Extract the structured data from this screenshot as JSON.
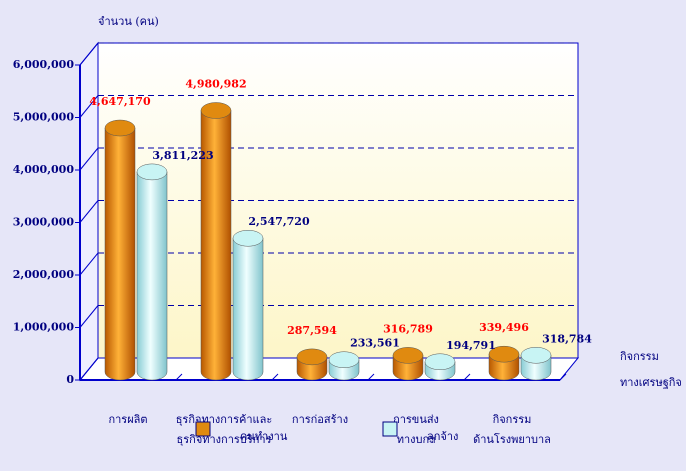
{
  "chart_data": {
    "type": "bar3d",
    "y_label": "จำนวน (คน)",
    "x_label": [
      "กิจกรรม",
      "ทางเศรษฐกิจ"
    ],
    "categories": [
      [
        "การผลิต"
      ],
      [
        "ธุรกิจทางการค้าและ",
        "ธุรกิจทางการบริการ"
      ],
      [
        "การก่อสร้าง"
      ],
      [
        "การขนส่ง",
        "ทางบกฯ"
      ],
      [
        "กิจกรรม",
        "ด้านโรงพยาบาล"
      ]
    ],
    "series": [
      {
        "name": "คนทำงาน",
        "color": "#e08a10",
        "label_color": "#ff0000",
        "values": [
          4647170,
          4980982,
          287594,
          316789,
          339496
        ],
        "value_labels": [
          "4,647,170",
          "4,980,982",
          "287,594",
          "316,789",
          "339,496"
        ]
      },
      {
        "name": "ลูกจ้าง",
        "color": "#c8f4f4",
        "label_color": "#000080",
        "values": [
          3811223,
          2547720,
          233561,
          194791,
          318784
        ],
        "value_labels": [
          "3,811,223",
          "2,547,720",
          "233,561",
          "194,791",
          "318,784"
        ]
      }
    ],
    "ylim": [
      0,
      6000000
    ],
    "yticks": [
      {
        "value": 0,
        "label": "0"
      },
      {
        "value": 1000000,
        "label": "1,000,000"
      },
      {
        "value": 2000000,
        "label": "2,000,000"
      },
      {
        "value": 3000000,
        "label": "3,000,000"
      },
      {
        "value": 4000000,
        "label": "4,000,000"
      },
      {
        "value": 5000000,
        "label": "5,000,000"
      },
      {
        "value": 6000000,
        "label": "6,000,000"
      }
    ],
    "grid": true
  }
}
